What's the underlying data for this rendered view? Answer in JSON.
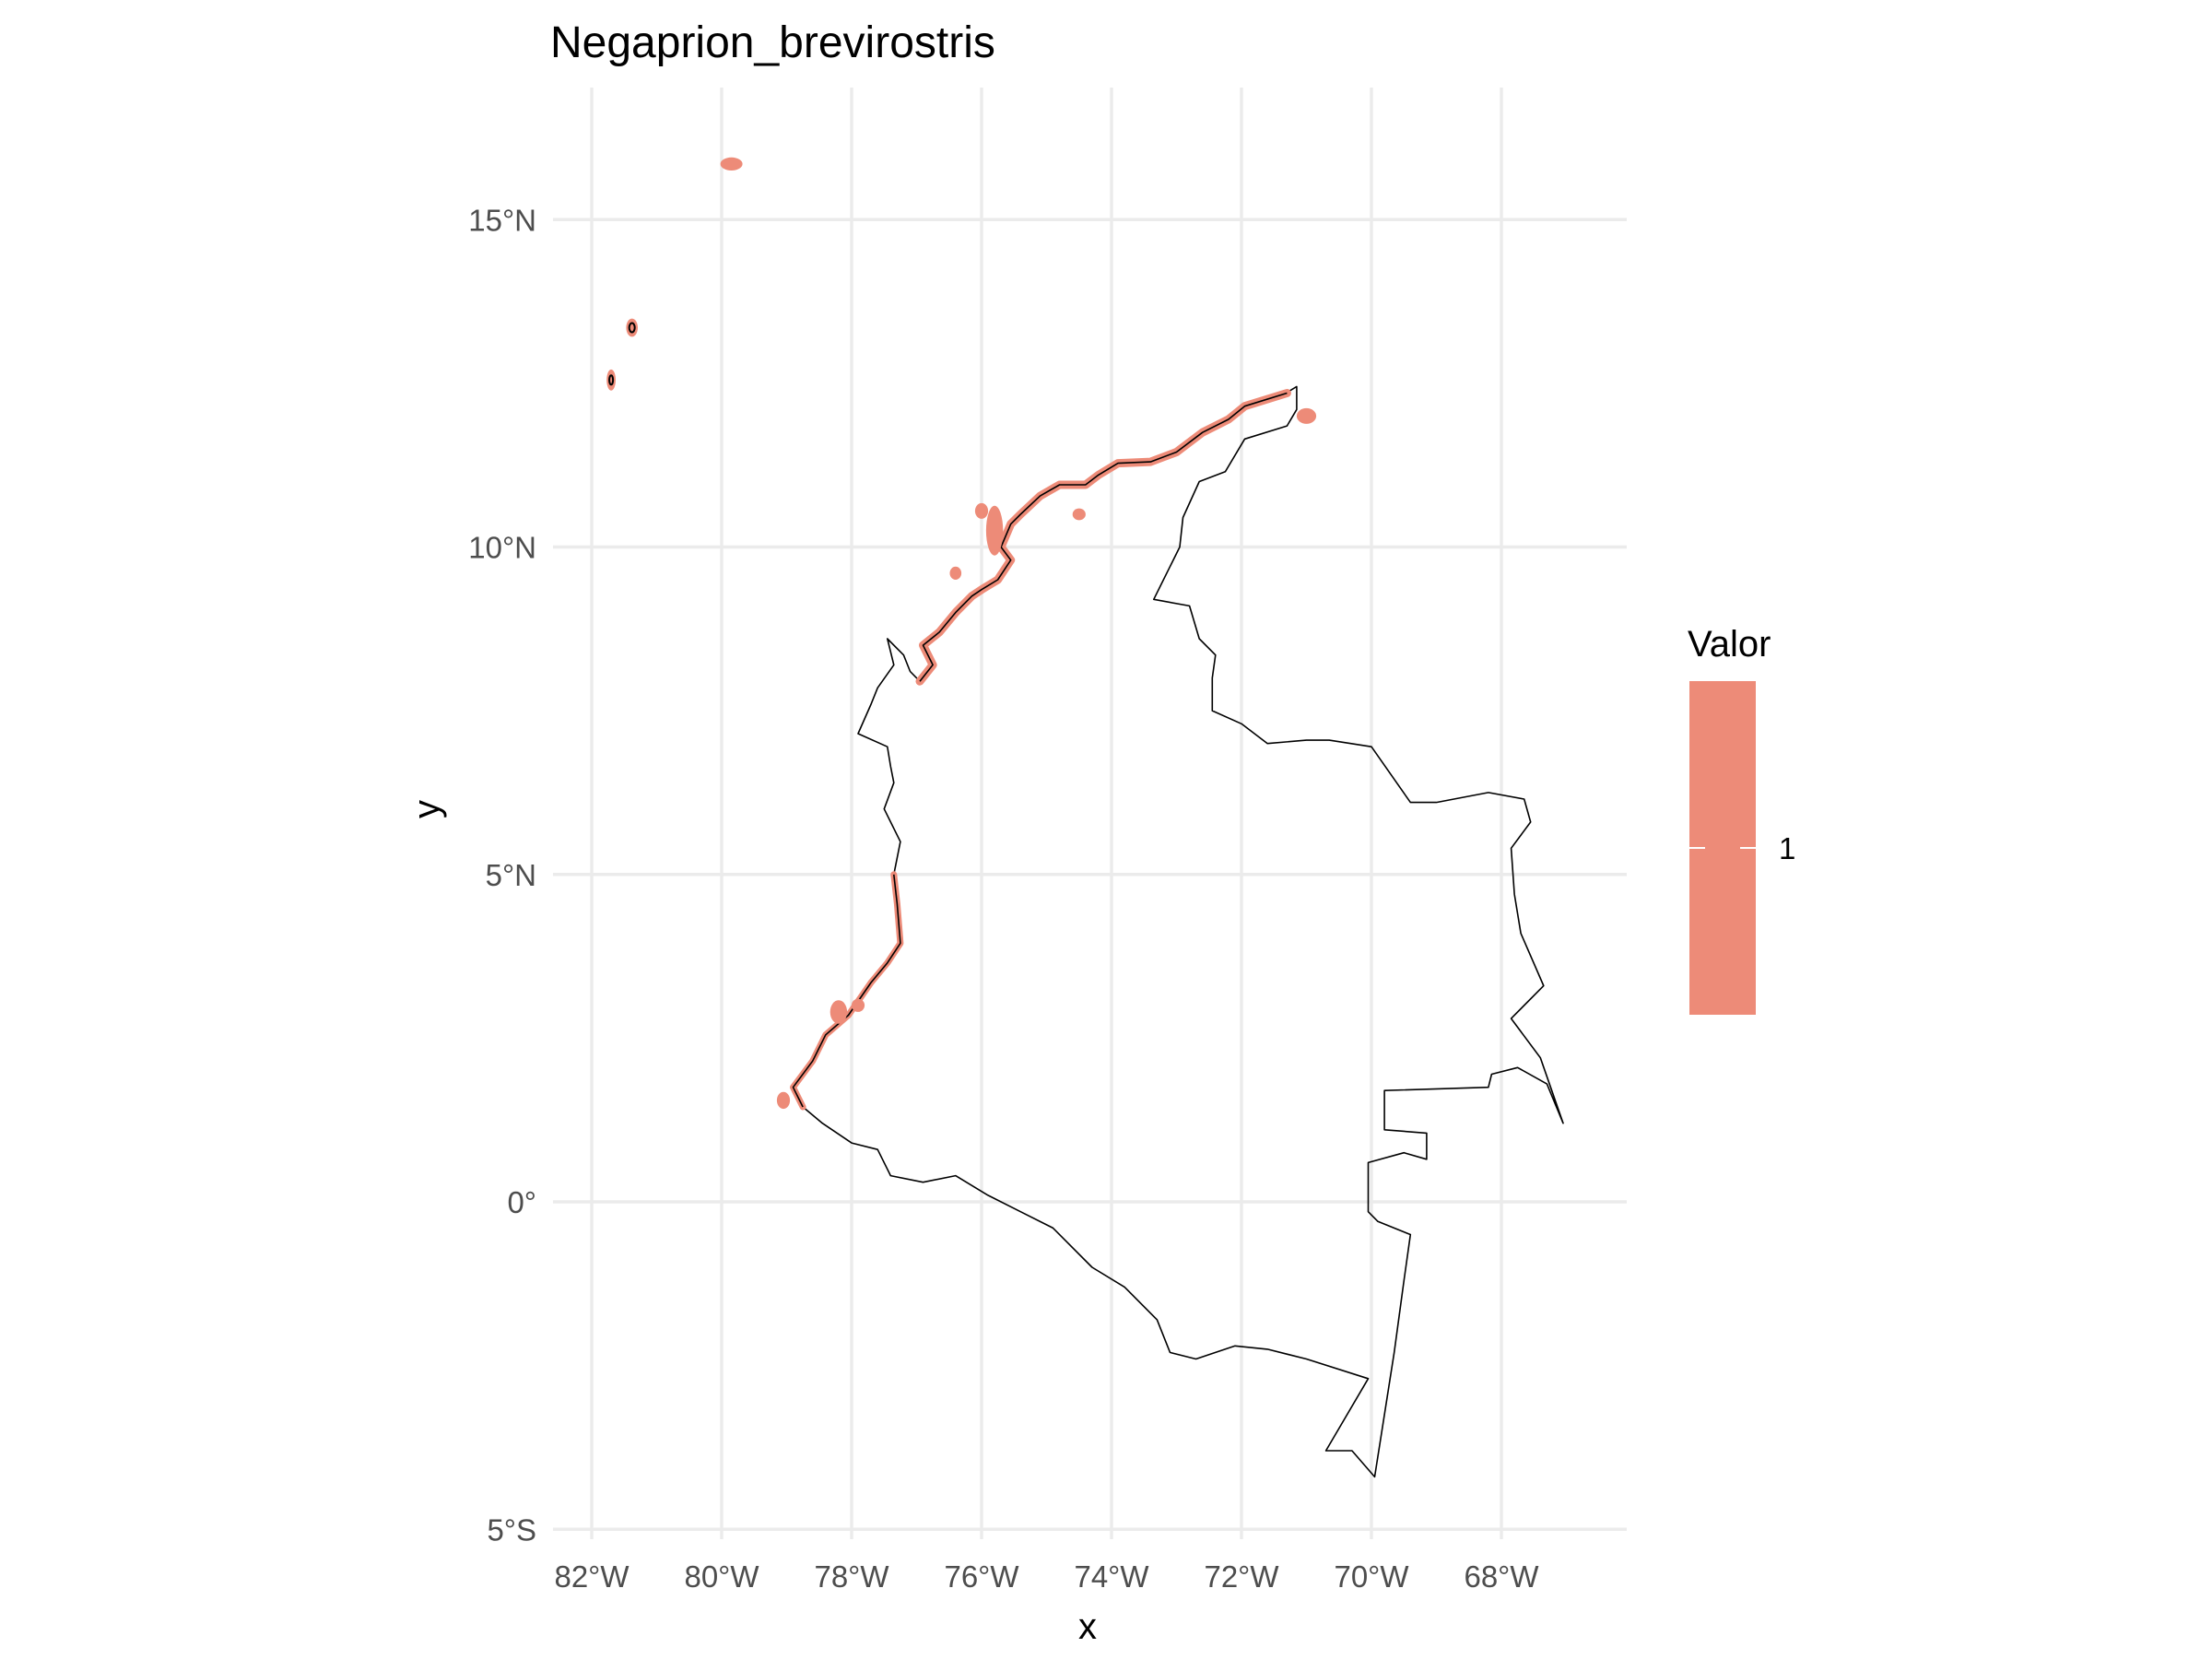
{
  "chart_data": {
    "type": "map",
    "title": "Negaprion_brevirostris",
    "xlabel": "x",
    "ylabel": "y",
    "xlim": [
      -82.5,
      -66.5
    ],
    "ylim": [
      -5,
      16.9
    ],
    "x_ticks": [
      {
        "value": -82,
        "label": "82°W"
      },
      {
        "value": -80,
        "label": "80°W"
      },
      {
        "value": -78,
        "label": "78°W"
      },
      {
        "value": -76,
        "label": "76°W"
      },
      {
        "value": -74,
        "label": "74°W"
      },
      {
        "value": -72,
        "label": "72°W"
      },
      {
        "value": -70,
        "label": "70°W"
      },
      {
        "value": -68,
        "label": "68°W"
      }
    ],
    "y_ticks": [
      {
        "value": 15,
        "label": "15°N"
      },
      {
        "value": 10,
        "label": "10°N"
      },
      {
        "value": 5,
        "label": "5°N"
      },
      {
        "value": 0,
        "label": "0°"
      },
      {
        "value": -5,
        "label": "5°S"
      }
    ],
    "grid": true,
    "legend": {
      "title": "Valor",
      "position": "right",
      "entries": [
        {
          "value": 1,
          "label": "1",
          "color": "#ed8b78"
        }
      ]
    },
    "colors": {
      "range_fill": "#ed8b78",
      "country_border": "#000000",
      "gridline": "#ebebeb",
      "tick_text": "#4d4d4d"
    },
    "country_border": [
      [
        -71.15,
        12.45
      ],
      [
        -71.4,
        12.3
      ],
      [
        -71.95,
        12.15
      ],
      [
        -72.2,
        11.95
      ],
      [
        -72.6,
        11.75
      ],
      [
        -73.0,
        11.45
      ],
      [
        -73.4,
        11.3
      ],
      [
        -73.9,
        11.28
      ],
      [
        -74.2,
        11.1
      ],
      [
        -74.4,
        10.95
      ],
      [
        -74.8,
        10.95
      ],
      [
        -75.1,
        10.78
      ],
      [
        -75.4,
        10.5
      ],
      [
        -75.55,
        10.35
      ],
      [
        -75.7,
        10.0
      ],
      [
        -75.55,
        9.8
      ],
      [
        -75.75,
        9.5
      ],
      [
        -76.0,
        9.35
      ],
      [
        -76.15,
        9.25
      ],
      [
        -76.4,
        9.0
      ],
      [
        -76.65,
        8.7
      ],
      [
        -76.9,
        8.5
      ],
      [
        -76.75,
        8.2
      ],
      [
        -76.95,
        7.95
      ],
      [
        -77.1,
        8.1
      ],
      [
        -77.2,
        8.35
      ],
      [
        -77.45,
        8.6
      ],
      [
        -77.35,
        8.2
      ],
      [
        -77.6,
        7.85
      ],
      [
        -77.7,
        7.6
      ],
      [
        -77.9,
        7.15
      ],
      [
        -77.45,
        6.95
      ],
      [
        -77.4,
        6.65
      ],
      [
        -77.35,
        6.4
      ],
      [
        -77.5,
        6.0
      ],
      [
        -77.25,
        5.5
      ],
      [
        -77.35,
        5.0
      ],
      [
        -77.3,
        4.55
      ],
      [
        -77.25,
        3.95
      ],
      [
        -77.45,
        3.65
      ],
      [
        -77.7,
        3.35
      ],
      [
        -78.05,
        2.85
      ],
      [
        -78.4,
        2.55
      ],
      [
        -78.6,
        2.15
      ],
      [
        -78.9,
        1.75
      ],
      [
        -78.75,
        1.45
      ],
      [
        -78.45,
        1.2
      ],
      [
        -78.0,
        0.9
      ],
      [
        -77.6,
        0.8
      ],
      [
        -77.4,
        0.4
      ],
      [
        -76.9,
        0.3
      ],
      [
        -76.4,
        0.4
      ],
      [
        -75.9,
        0.1
      ],
      [
        -75.4,
        -0.15
      ],
      [
        -74.9,
        -0.4
      ],
      [
        -74.3,
        -1.0
      ],
      [
        -73.8,
        -1.3
      ],
      [
        -73.3,
        -1.8
      ],
      [
        -73.1,
        -2.3
      ],
      [
        -72.7,
        -2.4
      ],
      [
        -72.1,
        -2.2
      ],
      [
        -71.6,
        -2.25
      ],
      [
        -71.0,
        -2.4
      ],
      [
        -70.05,
        -2.7
      ],
      [
        -70.7,
        -3.8
      ],
      [
        -70.3,
        -3.8
      ],
      [
        -69.95,
        -4.2
      ],
      [
        -69.65,
        -2.3
      ],
      [
        -69.5,
        -1.2
      ],
      [
        -69.4,
        -0.5
      ],
      [
        -69.9,
        -0.3
      ],
      [
        -70.05,
        -0.15
      ],
      [
        -70.05,
        0.6
      ],
      [
        -69.5,
        0.75
      ],
      [
        -69.15,
        0.65
      ],
      [
        -69.15,
        1.05
      ],
      [
        -69.8,
        1.1
      ],
      [
        -69.8,
        1.7
      ],
      [
        -68.2,
        1.75
      ],
      [
        -68.15,
        1.95
      ],
      [
        -67.75,
        2.05
      ],
      [
        -67.3,
        1.8
      ],
      [
        -67.05,
        1.2
      ],
      [
        -67.4,
        2.2
      ],
      [
        -67.85,
        2.8
      ],
      [
        -67.35,
        3.3
      ],
      [
        -67.7,
        4.1
      ],
      [
        -67.8,
        4.7
      ],
      [
        -67.85,
        5.4
      ],
      [
        -67.55,
        5.8
      ],
      [
        -67.65,
        6.15
      ],
      [
        -68.2,
        6.25
      ],
      [
        -69.0,
        6.1
      ],
      [
        -69.4,
        6.1
      ],
      [
        -70.0,
        6.95
      ],
      [
        -70.65,
        7.05
      ],
      [
        -71.0,
        7.05
      ],
      [
        -71.6,
        7.0
      ],
      [
        -72.0,
        7.3
      ],
      [
        -72.45,
        7.5
      ],
      [
        -72.45,
        8.0
      ],
      [
        -72.4,
        8.35
      ],
      [
        -72.65,
        8.6
      ],
      [
        -72.8,
        9.1
      ],
      [
        -73.35,
        9.2
      ],
      [
        -72.95,
        10.0
      ],
      [
        -72.9,
        10.45
      ],
      [
        -72.65,
        11.0
      ],
      [
        -72.25,
        11.15
      ],
      [
        -71.95,
        11.65
      ],
      [
        -71.3,
        11.85
      ],
      [
        -71.15,
        12.1
      ],
      [
        -71.15,
        12.45
      ]
    ],
    "range_coast": [
      [
        -71.3,
        12.35
      ],
      [
        -71.95,
        12.15
      ],
      [
        -72.2,
        11.95
      ],
      [
        -72.6,
        11.75
      ],
      [
        -73.0,
        11.45
      ],
      [
        -73.4,
        11.3
      ],
      [
        -73.9,
        11.28
      ],
      [
        -74.2,
        11.1
      ],
      [
        -74.4,
        10.95
      ],
      [
        -74.8,
        10.95
      ],
      [
        -75.1,
        10.78
      ],
      [
        -75.4,
        10.5
      ],
      [
        -75.55,
        10.35
      ],
      [
        -75.7,
        10.0
      ],
      [
        -75.55,
        9.8
      ],
      [
        -75.75,
        9.5
      ],
      [
        -76.0,
        9.35
      ],
      [
        -76.15,
        9.25
      ],
      [
        -76.4,
        9.0
      ],
      [
        -76.65,
        8.7
      ],
      [
        -76.9,
        8.5
      ],
      [
        -76.75,
        8.2
      ],
      [
        -76.95,
        7.95
      ]
    ],
    "range_coast_pacific": [
      [
        -77.35,
        5.0
      ],
      [
        -77.3,
        4.55
      ],
      [
        -77.25,
        3.95
      ],
      [
        -77.45,
        3.65
      ],
      [
        -77.7,
        3.35
      ],
      [
        -78.05,
        2.85
      ],
      [
        -78.4,
        2.55
      ],
      [
        -78.6,
        2.15
      ],
      [
        -78.9,
        1.75
      ],
      [
        -78.75,
        1.45
      ]
    ],
    "range_patches": [
      {
        "lon": -79.85,
        "lat": 15.85,
        "rx": 0.17,
        "ry": 0.1
      },
      {
        "lon": -81.38,
        "lat": 13.35,
        "rx": 0.09,
        "ry": 0.14
      },
      {
        "lon": -81.7,
        "lat": 12.55,
        "rx": 0.07,
        "ry": 0.16
      },
      {
        "lon": -71.0,
        "lat": 12.0,
        "rx": 0.15,
        "ry": 0.12
      },
      {
        "lon": -74.5,
        "lat": 10.5,
        "rx": 0.1,
        "ry": 0.09
      },
      {
        "lon": -75.8,
        "lat": 10.25,
        "rx": 0.13,
        "ry": 0.38
      },
      {
        "lon": -76.0,
        "lat": 10.55,
        "rx": 0.1,
        "ry": 0.12
      },
      {
        "lon": -76.4,
        "lat": 9.6,
        "rx": 0.09,
        "ry": 0.1
      },
      {
        "lon": -78.2,
        "lat": 2.9,
        "rx": 0.13,
        "ry": 0.18
      },
      {
        "lon": -79.05,
        "lat": 1.55,
        "rx": 0.1,
        "ry": 0.13
      },
      {
        "lon": -77.9,
        "lat": 3.0,
        "rx": 0.1,
        "ry": 0.1
      }
    ]
  }
}
